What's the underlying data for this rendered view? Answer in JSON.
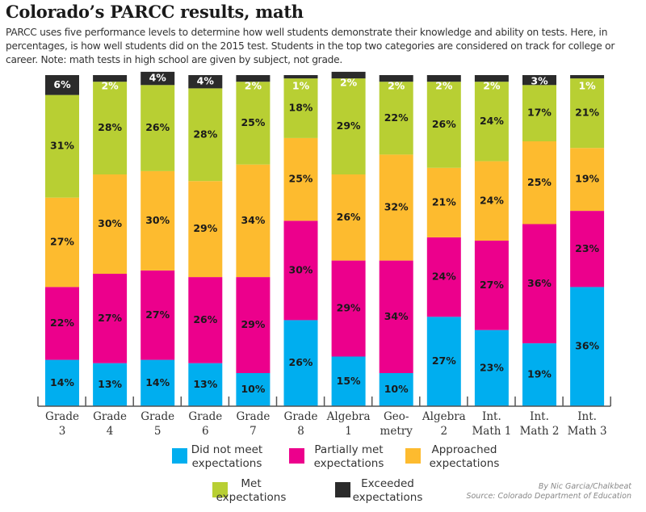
{
  "header": {
    "title": "Colorado’s PARCC results, math",
    "subtitle": "PARCC uses five performance levels to determine how well students demonstrate their knowledge and ability on tests. Here, in percentages, is how well students did on the 2015 test. Students in the top two categories are considered on track for college or career. Note: math tests in high school are given by subject, not grade."
  },
  "credit": {
    "byline": "By Nic Garcia/Chalkbeat",
    "source": "Source: Colorado Department of Education"
  },
  "chart_data": {
    "type": "bar",
    "stacked": true,
    "title": "Colorado’s PARCC results, math",
    "xlabel": "",
    "ylabel": "",
    "unit": "%",
    "ylim": [
      0,
      100
    ],
    "grid": false,
    "legend_position": "bottom",
    "categories": [
      [
        "Grade",
        "3"
      ],
      [
        "Grade",
        "4"
      ],
      [
        "Grade",
        "5"
      ],
      [
        "Grade",
        "6"
      ],
      [
        "Grade",
        "7"
      ],
      [
        "Grade",
        "8"
      ],
      [
        "Algebra",
        "1"
      ],
      [
        "Geo-",
        "metry"
      ],
      [
        "Algebra",
        "2"
      ],
      [
        "Int.",
        "Math 1"
      ],
      [
        "Int.",
        "Math 2"
      ],
      [
        "Int.",
        "Math 3"
      ]
    ],
    "series": [
      {
        "name": "Did not meet expectations",
        "legend": [
          "Did not meet",
          "expectations"
        ],
        "color": "#00aeef",
        "label_color": "#1a1a1a",
        "values": [
          14,
          13,
          14,
          13,
          10,
          26,
          15,
          10,
          27,
          23,
          19,
          36
        ]
      },
      {
        "name": "Partially met expectations",
        "legend": [
          "Partially met",
          "expectations"
        ],
        "color": "#ec008c",
        "label_color": "#1a1a1a",
        "values": [
          22,
          27,
          27,
          26,
          29,
          30,
          29,
          34,
          24,
          27,
          36,
          23
        ]
      },
      {
        "name": "Approached expectations",
        "legend": [
          "Approached",
          "expectations"
        ],
        "color": "#fdbb2f",
        "label_color": "#1a1a1a",
        "values": [
          27,
          30,
          30,
          29,
          34,
          25,
          26,
          32,
          21,
          24,
          25,
          19
        ]
      },
      {
        "name": "Met expectations",
        "legend": [
          "Met",
          "expectations"
        ],
        "color": "#b8cf33",
        "label_color": "#1a1a1a",
        "values": [
          31,
          28,
          26,
          28,
          25,
          18,
          29,
          22,
          26,
          24,
          17,
          21
        ]
      },
      {
        "name": "Exceeded expectations",
        "legend": [
          "Exceeded",
          "expectations"
        ],
        "color": "#2b2b2b",
        "label_color": "#ffffff",
        "values": [
          6,
          2,
          4,
          4,
          2,
          1,
          2,
          2,
          2,
          2,
          3,
          1
        ]
      }
    ]
  }
}
